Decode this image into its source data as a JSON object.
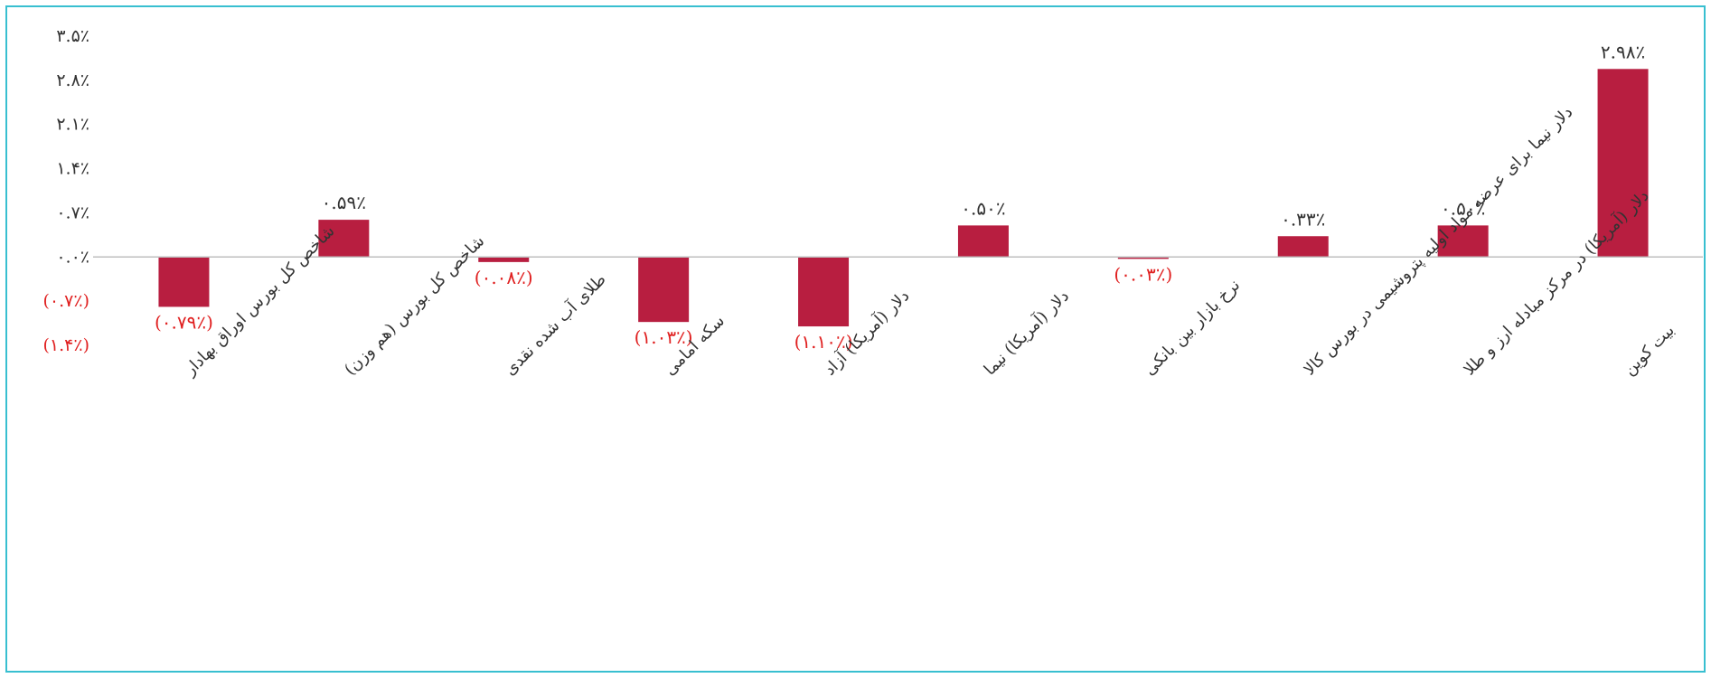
{
  "chart_data": {
    "type": "bar",
    "title": "",
    "xlabel": "",
    "ylabel": "",
    "ylim": [
      -1.4,
      3.5
    ],
    "yticks": [
      3.5,
      2.8,
      2.1,
      1.4,
      0.7,
      0.0,
      -0.7,
      -1.4
    ],
    "ytick_labels": [
      "۳.۵٪",
      "۲.۸٪",
      "۲.۱٪",
      "۱.۴٪",
      "۰.۷٪",
      "۰.۰٪",
      "(۰.۷٪)",
      "(۱.۴٪)"
    ],
    "grid": false,
    "legend": "none",
    "categories": [
      "شاخص کل بورس اوراق بهادار",
      "شاخص کل بورس (هم وزن)",
      "طلای آب شده نقدی",
      "سکه امامی",
      "دلار (آمریکا) آزاد",
      "دلار (آمریکا) نیما",
      "نرخ بازار بین بانکی",
      "دلار نیما برای عرضه مواد اولیه پتروشیمی در بورس کالا",
      "دلار (آمریکا) در مرکز مبادله ارز و طلا",
      "بیت کوین"
    ],
    "values": [
      -0.79,
      0.59,
      -0.08,
      -1.03,
      -1.1,
      0.5,
      -0.03,
      0.33,
      0.5,
      2.98
    ],
    "data_labels": [
      "(۰.۷۹٪)",
      "۰.۵۹٪",
      "(۰.۰۸٪)",
      "(۱.۰۳٪)",
      "(۱.۱۰٪)",
      "۰.۵۰٪",
      "(۰.۰۳٪)",
      "۰.۳۳٪",
      "۰.۵۰٪",
      "۲.۹۸٪"
    ]
  },
  "colors": {
    "bar": "#b81e40",
    "negative_label": "#e02020",
    "positive_label": "#333333",
    "axis_line": "#bfbfbf",
    "border": "#38bfd0"
  }
}
